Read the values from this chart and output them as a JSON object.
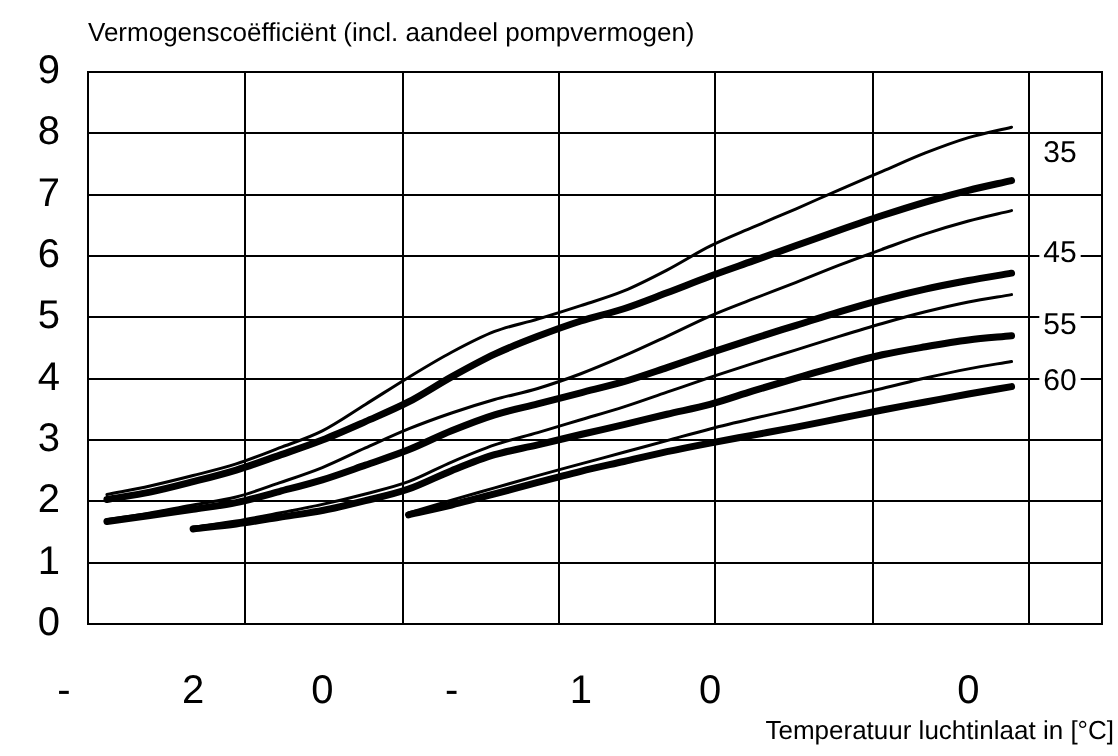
{
  "chart_data": {
    "type": "line",
    "ylabel": "Vermogenscoëfficiënt (incl. aandeel pompvermogen)",
    "xlabel": "Temperatuur luchtinlaat in [°C]",
    "categories": [
      "-",
      null,
      null,
      "2",
      null,
      null,
      "0",
      null,
      null,
      "-",
      null,
      null,
      "1",
      null,
      null,
      "0",
      null,
      null,
      null,
      null,
      null,
      "0",
      null,
      null,
      null
    ],
    "ylim": [
      0,
      9
    ],
    "yticks": [
      0,
      1,
      2,
      3,
      4,
      5,
      6,
      7,
      8,
      9
    ],
    "grid": true,
    "legend": false,
    "marker": "none",
    "line_style": "solid",
    "series": [
      {
        "color": "#000000",
        "values": [
          null,
          2.11,
          2.25,
          2.42,
          2.61,
          2.87,
          3.15,
          3.58,
          4.02,
          4.43,
          4.77,
          4.97,
          5.19,
          5.43,
          5.77,
          6.16,
          6.47,
          6.77,
          7.08,
          7.38,
          7.68,
          7.93,
          8.1,
          null,
          null
        ]
      },
      {
        "color": "#000000",
        "values": [
          null,
          2.03,
          2.15,
          2.32,
          2.51,
          2.75,
          3.0,
          3.3,
          3.62,
          4.03,
          4.4,
          4.69,
          4.94,
          5.14,
          5.4,
          5.67,
          5.92,
          6.17,
          6.42,
          6.66,
          6.88,
          7.07,
          7.23,
          null,
          null
        ]
      },
      {
        "color": "#000000",
        "values": [
          null,
          1.7,
          1.81,
          1.94,
          2.07,
          2.3,
          2.55,
          2.87,
          3.18,
          3.44,
          3.66,
          3.84,
          4.08,
          4.37,
          4.69,
          5.02,
          5.3,
          5.57,
          5.85,
          6.11,
          6.36,
          6.57,
          6.74,
          null,
          null
        ]
      },
      {
        "color": "#000000",
        "values": [
          null,
          1.67,
          1.77,
          1.87,
          1.98,
          2.16,
          2.35,
          2.59,
          2.84,
          3.15,
          3.41,
          3.59,
          3.77,
          3.95,
          4.18,
          4.42,
          4.65,
          4.87,
          5.09,
          5.29,
          5.46,
          5.6,
          5.72,
          null,
          null
        ]
      },
      {
        "color": "#000000",
        "values": [
          null,
          null,
          null,
          1.58,
          1.68,
          1.81,
          1.95,
          2.12,
          2.32,
          2.64,
          2.92,
          3.12,
          3.33,
          3.54,
          3.78,
          4.02,
          4.25,
          4.47,
          4.69,
          4.9,
          5.09,
          5.25,
          5.37,
          null,
          null
        ]
      },
      {
        "color": "#000000",
        "values": [
          null,
          null,
          null,
          1.55,
          1.63,
          1.74,
          1.85,
          2.01,
          2.2,
          2.5,
          2.76,
          2.92,
          3.09,
          3.25,
          3.42,
          3.58,
          3.8,
          4.01,
          4.21,
          4.39,
          4.52,
          4.63,
          4.7,
          null,
          null
        ]
      },
      {
        "color": "#000000",
        "values": [
          null,
          null,
          null,
          null,
          null,
          null,
          null,
          null,
          1.81,
          2.02,
          2.22,
          2.42,
          2.61,
          2.8,
          2.99,
          3.18,
          3.35,
          3.51,
          3.68,
          3.84,
          4.01,
          4.16,
          4.28,
          null,
          null
        ]
      },
      {
        "color": "#000000",
        "values": [
          null,
          null,
          null,
          null,
          null,
          null,
          null,
          null,
          1.78,
          1.94,
          2.12,
          2.31,
          2.49,
          2.65,
          2.81,
          2.95,
          3.08,
          3.21,
          3.35,
          3.49,
          3.62,
          3.75,
          3.87,
          null,
          null
        ]
      }
    ],
    "annotations": [
      {
        "text": "35",
        "y": 7.66
      },
      {
        "text": "45",
        "y": 6.03
      },
      {
        "text": "55",
        "y": 4.87
      },
      {
        "text": "60",
        "y": 3.95
      }
    ]
  }
}
